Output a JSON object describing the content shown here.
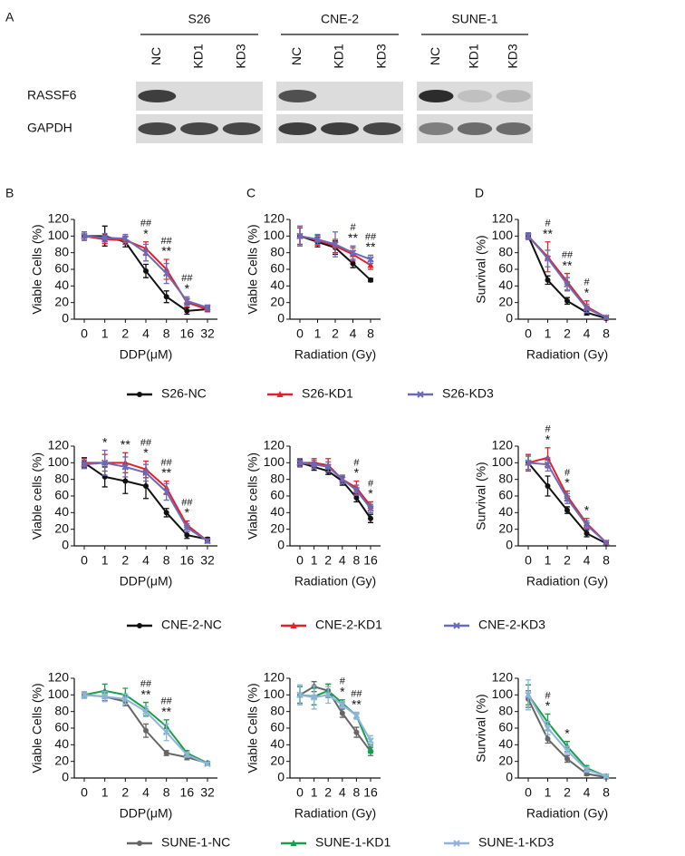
{
  "panel_labels": [
    "A",
    "B",
    "C",
    "D"
  ],
  "blot": {
    "groups": [
      {
        "name": "S26",
        "lanes": [
          "NC",
          "KD1",
          "KD3"
        ]
      },
      {
        "name": "CNE-2",
        "lanes": [
          "NC",
          "KD1",
          "KD3"
        ]
      },
      {
        "name": "SUNE-1",
        "lanes": [
          "NC",
          "KD1",
          "KD3"
        ]
      }
    ],
    "rows": [
      "RASSF6",
      "GAPDH"
    ]
  },
  "legends": [
    {
      "entries": [
        {
          "name": "S26-NC",
          "color": "#111111"
        },
        {
          "name": "S26-KD1",
          "color": "#e3202b"
        },
        {
          "name": "S26-KD3",
          "color": "#6a6ab8"
        }
      ]
    },
    {
      "entries": [
        {
          "name": "CNE-2-NC",
          "color": "#111111"
        },
        {
          "name": "CNE-2-KD1",
          "color": "#e3202b"
        },
        {
          "name": "CNE-2-KD3",
          "color": "#6a6ab8"
        }
      ]
    },
    {
      "entries": [
        {
          "name": "SUNE-1-NC",
          "color": "#666666"
        },
        {
          "name": "SUNE-1-KD1",
          "color": "#1a9e4a"
        },
        {
          "name": "SUNE-1-KD3",
          "color": "#8fb4dc"
        }
      ]
    }
  ],
  "chart_data": [
    {
      "type": "line",
      "ylabel": "Viable Cells (%)",
      "xlabel": "DDP(μM)",
      "categories": [
        "0",
        "1",
        "2",
        "4",
        "8",
        "16",
        "32"
      ],
      "ylim": [
        0,
        120
      ],
      "yticks": [
        0,
        20,
        40,
        60,
        80,
        100,
        120
      ],
      "series": [
        {
          "color": "#111111",
          "values": [
            100,
            100,
            93,
            58,
            27,
            10,
            12
          ],
          "errors": [
            5,
            12,
            6,
            8,
            7,
            4,
            3
          ]
        },
        {
          "color": "#e3202b",
          "values": [
            100,
            96,
            95,
            85,
            60,
            20,
            12
          ],
          "errors": [
            5,
            5,
            5,
            8,
            12,
            5,
            3
          ]
        },
        {
          "color": "#6a6ab8",
          "values": [
            100,
            98,
            97,
            80,
            55,
            22,
            14
          ],
          "errors": [
            5,
            5,
            5,
            10,
            12,
            5,
            3
          ]
        }
      ],
      "significance": [
        null,
        null,
        null,
        [
          "##",
          "*"
        ],
        [
          "##",
          "**"
        ],
        [
          "##",
          "*"
        ],
        null
      ]
    },
    {
      "type": "line",
      "ylabel": "Viable Cells (%)",
      "xlabel": "Radiation (Gy)",
      "categories": [
        "0",
        "1",
        "2",
        "4",
        "8"
      ],
      "ylim": [
        0,
        120
      ],
      "yticks": [
        0,
        20,
        40,
        60,
        80,
        100,
        120
      ],
      "series": [
        {
          "color": "#111111",
          "values": [
            100,
            93,
            86,
            67,
            47
          ],
          "errors": [
            10,
            6,
            8,
            5,
            2
          ]
        },
        {
          "color": "#e3202b",
          "values": [
            100,
            95,
            88,
            78,
            65
          ],
          "errors": [
            10,
            6,
            8,
            8,
            5
          ]
        },
        {
          "color": "#6a6ab8",
          "values": [
            100,
            96,
            90,
            80,
            72
          ],
          "errors": [
            12,
            6,
            15,
            8,
            5
          ]
        }
      ],
      "significance": [
        null,
        null,
        null,
        [
          "#",
          "**"
        ],
        [
          "##",
          "**"
        ]
      ]
    },
    {
      "type": "line",
      "ylabel": "Survival (%)",
      "xlabel": "Radiation (Gy)",
      "categories": [
        "0",
        "1",
        "2",
        "4",
        "8"
      ],
      "ylim": [
        0,
        120
      ],
      "yticks": [
        0,
        20,
        40,
        60,
        80,
        100,
        120
      ],
      "series": [
        {
          "color": "#111111",
          "values": [
            100,
            47,
            22,
            8,
            1
          ],
          "errors": [
            4,
            5,
            4,
            3,
            1
          ]
        },
        {
          "color": "#e3202b",
          "values": [
            100,
            75,
            45,
            15,
            2
          ],
          "errors": [
            4,
            18,
            10,
            7,
            1
          ]
        },
        {
          "color": "#6a6ab8",
          "values": [
            100,
            73,
            42,
            13,
            2
          ],
          "errors": [
            4,
            10,
            8,
            5,
            1
          ]
        }
      ],
      "significance": [
        null,
        [
          "#",
          "**"
        ],
        [
          "##",
          "**"
        ],
        [
          "#",
          "*"
        ],
        null
      ]
    },
    {
      "type": "line",
      "ylabel": "Viable cells (%)",
      "xlabel": "DDP(μM)",
      "categories": [
        "0",
        "1",
        "2",
        "4",
        "8",
        "16",
        "32"
      ],
      "ylim": [
        0,
        120
      ],
      "yticks": [
        0,
        20,
        40,
        60,
        80,
        100,
        120
      ],
      "series": [
        {
          "color": "#111111",
          "values": [
            100,
            83,
            78,
            72,
            40,
            13,
            8
          ],
          "errors": [
            6,
            12,
            15,
            15,
            5,
            4,
            2
          ]
        },
        {
          "color": "#e3202b",
          "values": [
            100,
            100,
            100,
            92,
            70,
            25,
            6
          ],
          "errors": [
            5,
            10,
            12,
            10,
            8,
            5,
            2
          ]
        },
        {
          "color": "#6a6ab8",
          "values": [
            98,
            100,
            95,
            88,
            65,
            22,
            6
          ],
          "errors": [
            5,
            15,
            12,
            10,
            10,
            5,
            2
          ]
        }
      ],
      "significance": [
        null,
        [
          "*"
        ],
        [
          "**"
        ],
        [
          "##",
          "*"
        ],
        [
          "##",
          "**"
        ],
        [
          "##",
          "*"
        ],
        null
      ]
    },
    {
      "type": "line",
      "ylabel": "Viable cells (%)",
      "xlabel": "Radiation (Gy)",
      "categories": [
        "0",
        "1",
        "2",
        "4",
        "8",
        "16"
      ],
      "ylim": [
        0,
        120
      ],
      "yticks": [
        0,
        20,
        40,
        60,
        80,
        100,
        120
      ],
      "series": [
        {
          "color": "#111111",
          "values": [
            100,
            95,
            90,
            78,
            58,
            33
          ],
          "errors": [
            4,
            4,
            4,
            5,
            5,
            5
          ]
        },
        {
          "color": "#e3202b",
          "values": [
            100,
            100,
            97,
            80,
            70,
            48
          ],
          "errors": [
            5,
            5,
            8,
            5,
            8,
            5
          ]
        },
        {
          "color": "#6a6ab8",
          "values": [
            100,
            98,
            95,
            80,
            67,
            45
          ],
          "errors": [
            5,
            5,
            6,
            5,
            6,
            5
          ]
        }
      ],
      "significance": [
        null,
        null,
        null,
        null,
        [
          "#",
          "*"
        ],
        [
          "#",
          "*"
        ]
      ]
    },
    {
      "type": "line",
      "ylabel": "Survival (%)",
      "xlabel": "Radiation (Gy)",
      "categories": [
        "0",
        "1",
        "2",
        "4",
        "8"
      ],
      "ylim": [
        0,
        120
      ],
      "yticks": [
        0,
        20,
        40,
        60,
        80,
        100,
        120
      ],
      "series": [
        {
          "color": "#111111",
          "values": [
            100,
            72,
            43,
            15,
            3
          ],
          "errors": [
            8,
            12,
            4,
            4,
            1
          ]
        },
        {
          "color": "#e3202b",
          "values": [
            100,
            106,
            60,
            27,
            4
          ],
          "errors": [
            10,
            12,
            6,
            6,
            1
          ]
        },
        {
          "color": "#6a6ab8",
          "values": [
            100,
            98,
            57,
            25,
            4
          ],
          "errors": [
            8,
            8,
            6,
            5,
            1
          ]
        }
      ],
      "significance": [
        null,
        [
          "#",
          "*"
        ],
        [
          "#",
          "*"
        ],
        [
          "*"
        ],
        null
      ]
    },
    {
      "type": "line",
      "ylabel": "Viable Cells (%)",
      "xlabel": "DDP(μM)",
      "categories": [
        "0",
        "1",
        "2",
        "4",
        "8",
        "16",
        "32"
      ],
      "ylim": [
        0,
        120
      ],
      "yticks": [
        0,
        20,
        40,
        60,
        80,
        100,
        120
      ],
      "series": [
        {
          "color": "#666666",
          "values": [
            100,
            98,
            92,
            57,
            30,
            25,
            18
          ],
          "errors": [
            4,
            5,
            5,
            8,
            3,
            3,
            2
          ]
        },
        {
          "color": "#1a9e4a",
          "values": [
            100,
            105,
            100,
            83,
            62,
            30,
            18
          ],
          "errors": [
            4,
            8,
            8,
            8,
            8,
            3,
            2
          ]
        },
        {
          "color": "#8fb4dc",
          "values": [
            100,
            98,
            95,
            80,
            55,
            28,
            17
          ],
          "errors": [
            4,
            6,
            6,
            6,
            10,
            3,
            2
          ]
        }
      ],
      "significance": [
        null,
        null,
        null,
        [
          "##",
          "**"
        ],
        [
          "##",
          "**"
        ],
        null,
        null
      ]
    },
    {
      "type": "line",
      "ylabel": "Viable Cells (%)",
      "xlabel": "Radiation (Gy)",
      "categories": [
        "0",
        "1",
        "2",
        "4",
        "8",
        "16"
      ],
      "ylim": [
        0,
        120
      ],
      "yticks": [
        0,
        20,
        40,
        60,
        80,
        100,
        120
      ],
      "series": [
        {
          "color": "#666666",
          "values": [
            100,
            110,
            105,
            78,
            55,
            32
          ],
          "errors": [
            10,
            6,
            8,
            5,
            6,
            5
          ]
        },
        {
          "color": "#1a9e4a",
          "values": [
            100,
            98,
            105,
            90,
            75,
            35
          ],
          "errors": [
            10,
            10,
            8,
            4,
            4,
            5
          ]
        },
        {
          "color": "#8fb4dc",
          "values": [
            100,
            97,
            100,
            88,
            75,
            45
          ],
          "errors": [
            12,
            14,
            10,
            4,
            4,
            6
          ]
        }
      ],
      "significance": [
        null,
        null,
        null,
        [
          "#",
          "*"
        ],
        [
          "##",
          "**"
        ],
        null
      ]
    },
    {
      "type": "line",
      "ylabel": "Survival (%)",
      "xlabel": "Radiation (Gy)",
      "categories": [
        "0",
        "1",
        "2",
        "4",
        "8"
      ],
      "ylim": [
        0,
        120
      ],
      "yticks": [
        0,
        20,
        40,
        60,
        80,
        100,
        120
      ],
      "series": [
        {
          "color": "#666666",
          "values": [
            95,
            47,
            23,
            5,
            1
          ],
          "errors": [
            10,
            5,
            4,
            2,
            1
          ]
        },
        {
          "color": "#1a9e4a",
          "values": [
            100,
            67,
            38,
            12,
            2
          ],
          "errors": [
            12,
            10,
            6,
            3,
            1
          ]
        },
        {
          "color": "#8fb4dc",
          "values": [
            100,
            60,
            33,
            10,
            2
          ],
          "errors": [
            18,
            8,
            5,
            3,
            1
          ]
        }
      ],
      "significance": [
        null,
        [
          "#",
          "*"
        ],
        [
          "*"
        ],
        null,
        null
      ]
    }
  ]
}
